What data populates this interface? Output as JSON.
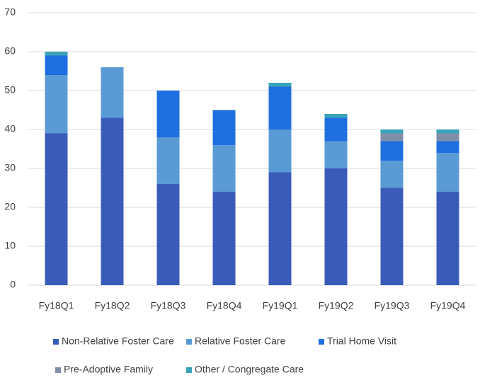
{
  "chart_data": {
    "type": "stacked_bar",
    "categories": [
      "Fy18Q1",
      "Fy18Q2",
      "Fy18Q3",
      "Fy18Q4",
      "Fy19Q1",
      "Fy19Q2",
      "Fy19Q3",
      "Fy19Q4"
    ],
    "series": [
      {
        "name": "Non-Relative Foster Care",
        "color": "#3a5cb8",
        "values": [
          39,
          43,
          26,
          24,
          29,
          30,
          25,
          24
        ]
      },
      {
        "name": "Relative Foster Care",
        "color": "#5b9bd5",
        "values": [
          15,
          13,
          12,
          12,
          11,
          7,
          7,
          10
        ]
      },
      {
        "name": "Trial Home Visit",
        "color": "#1f6fe0",
        "values": [
          5,
          0,
          12,
          9,
          11,
          6,
          5,
          3
        ]
      },
      {
        "name": "Pre-Adoptive Family",
        "color": "#7f8fa9",
        "values": [
          0,
          0,
          0,
          0,
          0,
          0,
          2,
          2
        ]
      },
      {
        "name": "Other / Congregate Care",
        "color": "#3aa3b8",
        "values": [
          1,
          0,
          0,
          0,
          1,
          1,
          1,
          1
        ]
      }
    ],
    "ylim": [
      0,
      70
    ],
    "yticks": [
      0,
      10,
      20,
      30,
      40,
      50,
      60,
      70
    ],
    "grid": true,
    "legend": "bottom"
  }
}
